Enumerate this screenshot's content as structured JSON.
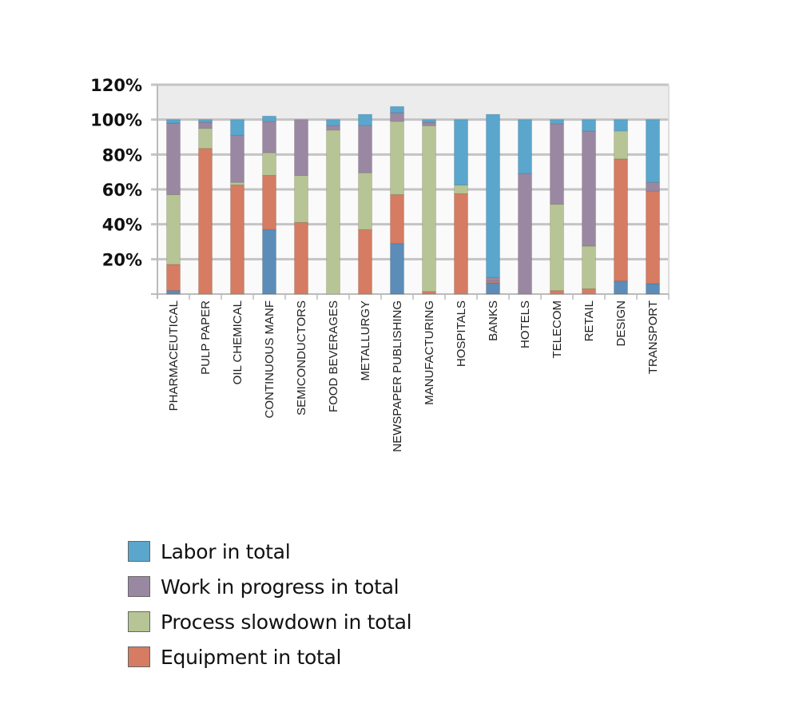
{
  "chart_data": {
    "type": "bar",
    "stacked": true,
    "title": "",
    "xlabel": "",
    "ylabel": "",
    "ylim": [
      0,
      120
    ],
    "y_ticks": [
      20,
      40,
      60,
      80,
      100,
      120
    ],
    "y_tick_labels": [
      "20%",
      "40%",
      "60%",
      "80%",
      "100%",
      "120%"
    ],
    "grid": true,
    "legend_position": "bottom-left",
    "categories": [
      "PHARMACEUTICAL",
      "PULP PAPER",
      "OIL CHEMICAL",
      "CONTINUOUS MANF",
      "SEMICONDUCTORS",
      "FOOD BEVERAGES",
      "METALLURGY",
      "NEWSPAPER PUBLISHING",
      "MANUFACTURING",
      "HOSPITALS",
      "BANKS",
      "HOTELS",
      "TELECOM",
      "RETAIL",
      "DESIGN",
      "TRANSPORT"
    ],
    "series": [
      {
        "name": "",
        "in_legend": false,
        "color": "#5b8db8",
        "values": [
          2,
          0,
          0,
          37,
          0,
          0,
          0,
          29,
          0,
          0,
          6.5,
          0,
          0,
          0,
          7.5,
          6
        ]
      },
      {
        "name": "Equipment in total",
        "in_legend": true,
        "color": "#d57c62",
        "values": [
          15,
          83.5,
          62.5,
          31,
          41,
          0,
          37,
          28,
          1.5,
          57.5,
          1,
          0,
          2,
          3,
          70,
          53
        ]
      },
      {
        "name": "Process slowdown in total",
        "in_legend": true,
        "color": "#b7c495",
        "values": [
          40,
          11.5,
          1.5,
          13,
          27,
          94,
          32.5,
          42,
          95,
          5,
          0,
          0,
          49.5,
          24.5,
          16,
          0
        ]
      },
      {
        "name": "Work in progress in total",
        "in_legend": true,
        "color": "#9a88a3",
        "values": [
          41,
          3.5,
          27,
          18,
          32,
          2.5,
          27,
          5,
          2,
          0,
          2,
          69,
          46,
          66,
          0,
          5
        ]
      },
      {
        "name": "Labor in total",
        "in_legend": true,
        "color": "#5aa6cc",
        "values": [
          2,
          1.5,
          9,
          3,
          0,
          3.5,
          6.5,
          3.5,
          1.5,
          37.5,
          93.5,
          31,
          2.5,
          6.5,
          6.5,
          36
        ]
      }
    ],
    "legend_order": [
      4,
      3,
      2,
      1
    ]
  }
}
